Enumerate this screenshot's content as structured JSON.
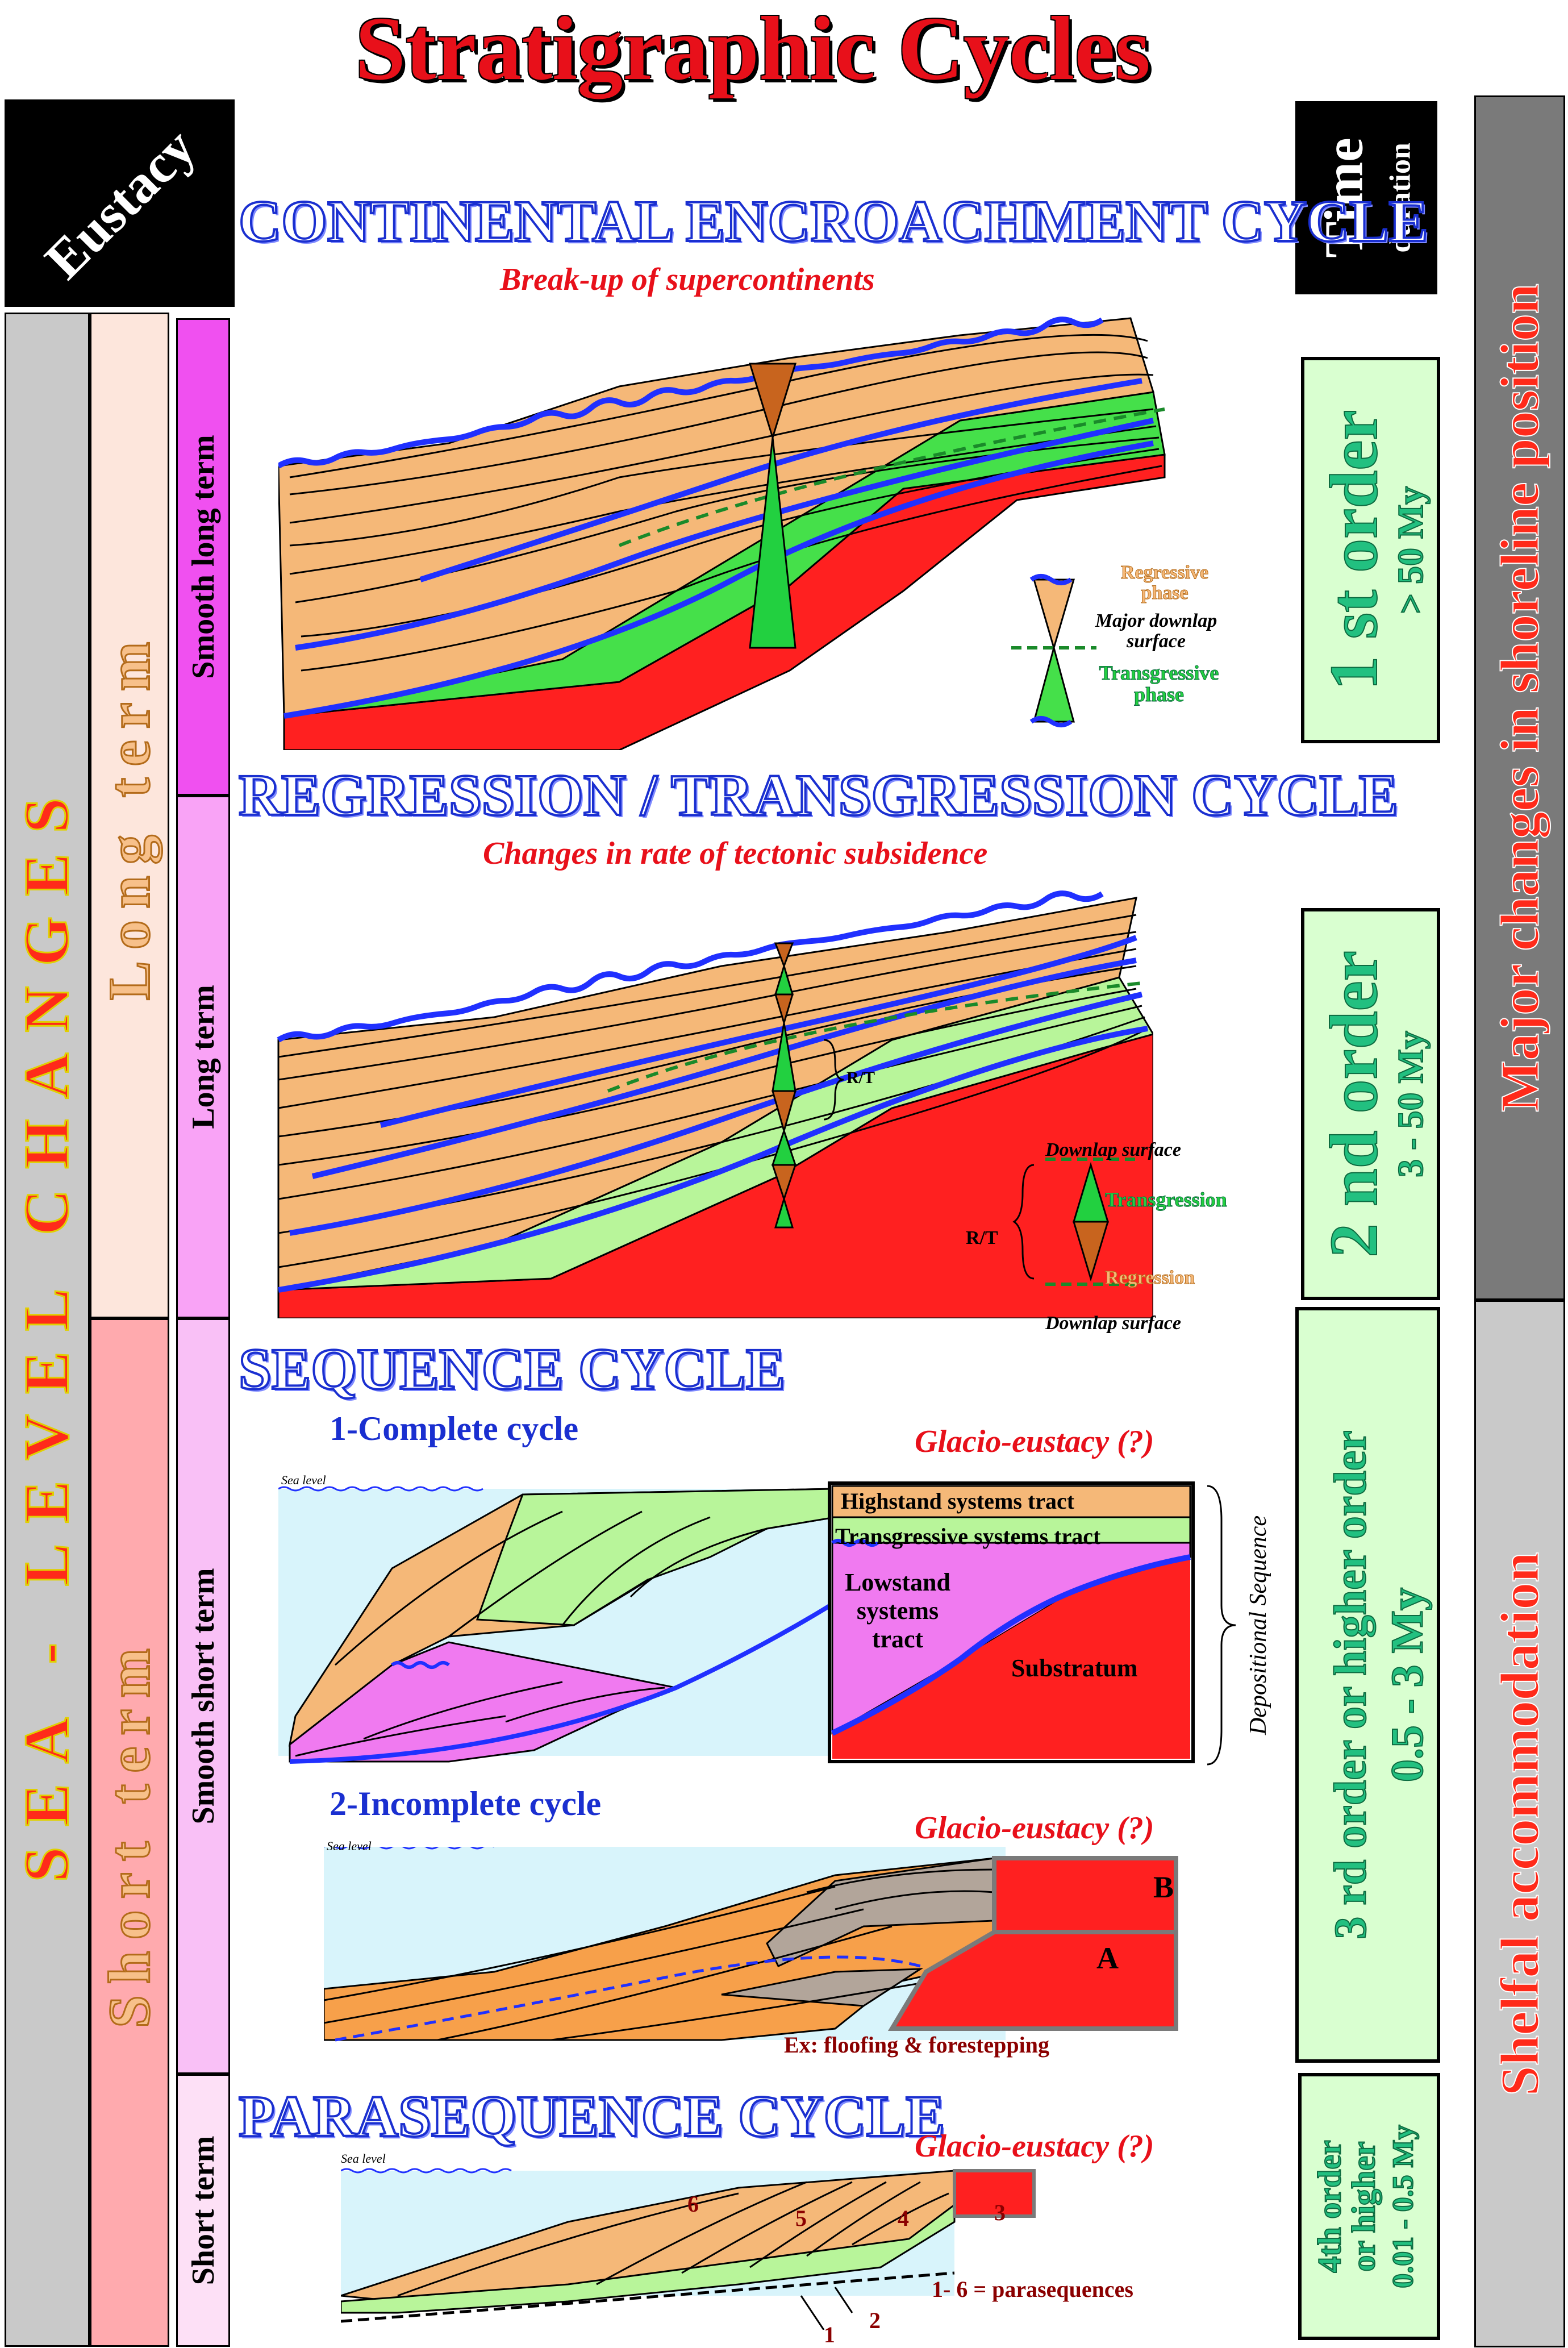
{
  "title": "Stratigraphic Cycles",
  "left_panel": {
    "eustacy": "Eustacy",
    "sea_level_changes": "SEA - LEVEL CHANGES",
    "long_term": "Long term",
    "short_term": "Short term",
    "smooth_long_term": "Smooth long term",
    "long_term_small": "Long term",
    "smooth_short_term": "Smooth short term",
    "short_term_small": "Short term"
  },
  "right_panel": {
    "time": "Time",
    "duration": "duration",
    "major_changes": "Major changes in shoreline position",
    "shelfal": "Shelfal accommodation",
    "orders": [
      {
        "order": "1 st order",
        "range": "> 50 My"
      },
      {
        "order": "2 nd order",
        "range": "3 - 50 My"
      },
      {
        "order": "3 rd order or higher order",
        "range": "0.5 - 3 My"
      },
      {
        "order_lines": [
          "4th order",
          "or higher"
        ],
        "range": "0.01 - 0.5 My"
      }
    ]
  },
  "sections": {
    "continental": {
      "title": "CONTINENTAL ENCROACHMENT CYCLE",
      "subtitle": "Break-up of supercontinents",
      "legend": {
        "regressive": "Regressive phase",
        "downlap": "Major downlap surface",
        "transgressive": "Transgressive phase"
      }
    },
    "regression": {
      "title": "REGRESSION / TRANSGRESSION CYCLE",
      "subtitle": "Changes in rate of tectonic subsidence",
      "rt_label": "R/T",
      "legend": {
        "downlap_top": "Downlap surface",
        "transgression": "Transgression",
        "regression": "Regression",
        "downlap_bottom": "Downlap surface",
        "rt": "R/T"
      }
    },
    "sequence": {
      "title": "SEQUENCE CYCLE",
      "complete": "1-Complete cycle",
      "glacio_1": "Glacio-eustacy (?)",
      "sea_level_1": "Sea level",
      "highstand": "Highstand systems tract",
      "transgressive": "Transgressive systems tract",
      "lowstand": "Lowstand systems tract",
      "substratum": "Substratum",
      "depositional": "Depositional Sequence",
      "incomplete": "2-Incomplete cycle",
      "glacio_2": "Glacio-eustacy (?)",
      "sea_level_2": "Sea level",
      "label_a": "A",
      "label_b": "B",
      "example": "Ex: floofing & forestepping"
    },
    "parasequence": {
      "title": "PARASEQUENCE CYCLE",
      "glacio": "Glacio-eustacy (?)",
      "sea_level": "Sea level",
      "numbers": [
        "6",
        "5",
        "4",
        "3",
        "2",
        "1"
      ],
      "note": "1- 6 = parasequences"
    }
  },
  "colors": {
    "title_red": "#e8101a",
    "section_blue": "#1a2fd0",
    "sand": "#f5b878",
    "green": "#45e04a",
    "light_green": "#b8f59a",
    "substratum_red": "#ff2020",
    "surface_blue": "#2030ff",
    "lowstand_pink": "#f07af0",
    "sea_blue": "#d8f4fb",
    "orange": "#f7a04a"
  }
}
